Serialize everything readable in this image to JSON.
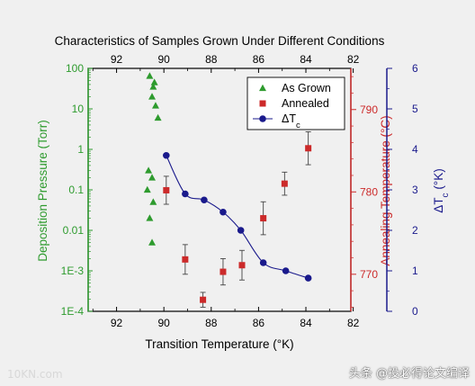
{
  "chart_data": {
    "type": "scatter",
    "title": "Characteristics of Samples Grown Under Different Conditions",
    "xlabel": "Transition Temperature (°K)",
    "xlim": [
      93.2,
      82.1
    ],
    "x_ticks": [
      "92",
      "90",
      "88",
      "86",
      "84",
      "82"
    ],
    "top_x_ticks": [
      "92",
      "90",
      "88",
      "86",
      "84",
      "82"
    ],
    "axes": {
      "left": {
        "label": "Deposition Pressure (Torr)",
        "scale": "log",
        "ylim": [
          0.0001,
          100
        ],
        "ticks": [
          "1E-4",
          "1E-3",
          "0.01",
          "0.1",
          "1",
          "10",
          "100"
        ],
        "color": "#2e9b2e"
      },
      "right1": {
        "label": "Annealing Temperature (°C)",
        "ylim": [
          765.5,
          795
        ],
        "ticks": [
          "770",
          "780",
          "790"
        ],
        "color": "#cc2a2a"
      },
      "right2": {
        "label": "ΔT",
        "label_sub": "c",
        "label_unit": " (°K)",
        "ylim": [
          0,
          6
        ],
        "ticks": [
          "0",
          "1",
          "2",
          "3",
          "4",
          "5",
          "6"
        ],
        "color": "#1a1a8c"
      }
    },
    "legend": {
      "placement": "top-right",
      "entries": [
        {
          "label": "As Grown",
          "marker": "triangle",
          "color": "#2e9b2e"
        },
        {
          "label": "Annealed",
          "marker": "square",
          "color": "#cc2a2a"
        },
        {
          "label": "ΔT",
          "sub": "c",
          "marker": "circle-line",
          "color": "#1a1a8c"
        }
      ]
    },
    "series": [
      {
        "name": "As Grown",
        "axis": "left",
        "x": [
          90.6,
          90.4,
          90.45,
          90.5,
          90.35,
          90.25,
          90.65,
          90.5,
          90.7,
          90.45,
          90.6,
          90.5
        ],
        "y": [
          65,
          45,
          35,
          20,
          12,
          6,
          0.3,
          0.2,
          0.1,
          0.05,
          0.02,
          0.005
        ]
      },
      {
        "name": "Annealed",
        "axis": "right1",
        "x": [
          89.9,
          89.1,
          88.35,
          87.5,
          86.7,
          85.8,
          84.9,
          83.9
        ],
        "y": [
          780.2,
          771.8,
          766.9,
          770.3,
          771.1,
          776.8,
          781.0,
          785.3
        ],
        "err": [
          1.7,
          1.8,
          0.9,
          1.6,
          1.8,
          2.0,
          1.4,
          2.0
        ]
      },
      {
        "name": "ΔT",
        "axis": "right2",
        "x": [
          89.9,
          89.1,
          88.3,
          87.5,
          86.75,
          85.8,
          84.85,
          83.9
        ],
        "y": [
          3.85,
          2.9,
          2.75,
          2.45,
          2.0,
          1.2,
          1.0,
          0.82
        ]
      }
    ]
  },
  "watermarks": {
    "bottom_left": "10KN.com",
    "bottom_right": "头条 @投必得论文编译"
  }
}
